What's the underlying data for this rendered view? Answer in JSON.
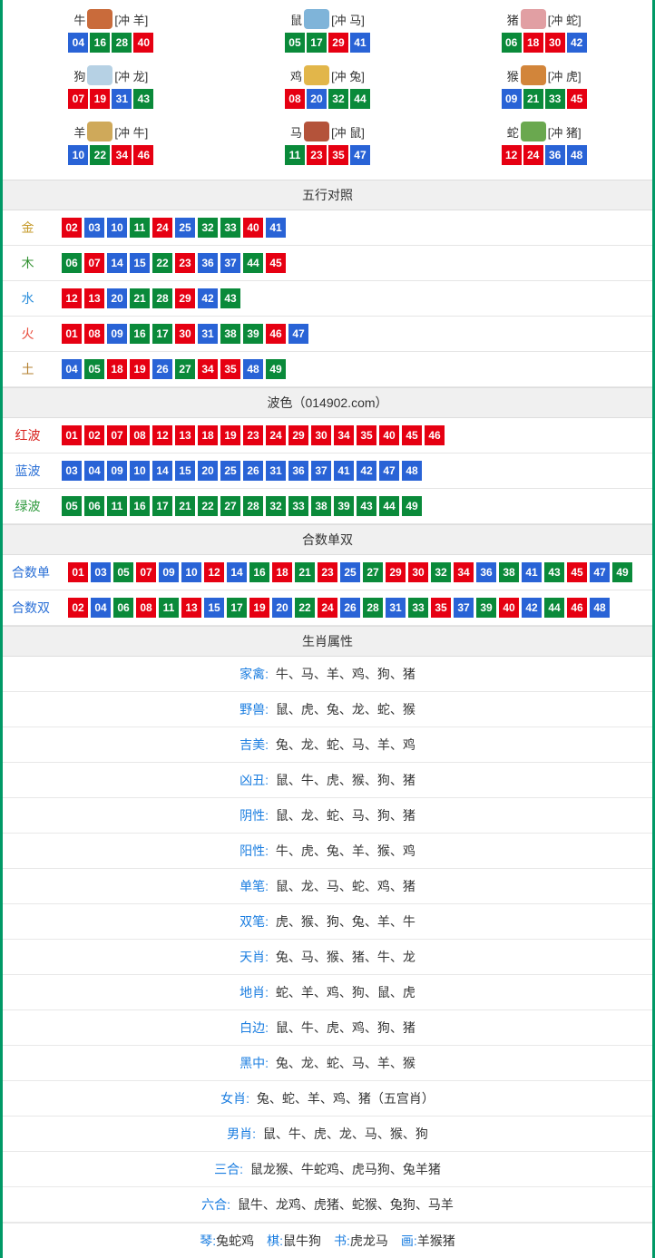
{
  "colors": {
    "red": "#e60012",
    "blue": "#2963d6",
    "green": "#0a8a3a",
    "gold": "#c59a2a",
    "wood": "#2f8f2f",
    "water": "#2a8edb",
    "fire": "#e84a3a",
    "earth": "#b37f2e",
    "redText": "#d8201c",
    "blueText": "#2a6fd6",
    "greenText": "#2e9a3c",
    "labelBlue": "#1a7de0",
    "icon0": "#c96b3b",
    "icon1": "#7fb4d9",
    "icon2": "#e19fa3",
    "icon3": "#b6d1e4",
    "icon4": "#e2b64a",
    "icon5": "#d2853a",
    "icon6": "#cfa95a",
    "icon7": "#b4533a",
    "icon8": "#6aa84f"
  },
  "zodiac": [
    {
      "name": "牛",
      "clash": "[冲 羊]",
      "iconColor": "icon0",
      "nums": [
        {
          "n": "04",
          "c": "blue"
        },
        {
          "n": "16",
          "c": "green"
        },
        {
          "n": "28",
          "c": "green"
        },
        {
          "n": "40",
          "c": "red"
        }
      ]
    },
    {
      "name": "鼠",
      "clash": "[冲 马]",
      "iconColor": "icon1",
      "nums": [
        {
          "n": "05",
          "c": "green"
        },
        {
          "n": "17",
          "c": "green"
        },
        {
          "n": "29",
          "c": "red"
        },
        {
          "n": "41",
          "c": "blue"
        }
      ]
    },
    {
      "name": "猪",
      "clash": "[冲 蛇]",
      "iconColor": "icon2",
      "nums": [
        {
          "n": "06",
          "c": "green"
        },
        {
          "n": "18",
          "c": "red"
        },
        {
          "n": "30",
          "c": "red"
        },
        {
          "n": "42",
          "c": "blue"
        }
      ]
    },
    {
      "name": "狗",
      "clash": "[冲 龙]",
      "iconColor": "icon3",
      "nums": [
        {
          "n": "07",
          "c": "red"
        },
        {
          "n": "19",
          "c": "red"
        },
        {
          "n": "31",
          "c": "blue"
        },
        {
          "n": "43",
          "c": "green"
        }
      ]
    },
    {
      "name": "鸡",
      "clash": "[冲 兔]",
      "iconColor": "icon4",
      "nums": [
        {
          "n": "08",
          "c": "red"
        },
        {
          "n": "20",
          "c": "blue"
        },
        {
          "n": "32",
          "c": "green"
        },
        {
          "n": "44",
          "c": "green"
        }
      ]
    },
    {
      "name": "猴",
      "clash": "[冲 虎]",
      "iconColor": "icon5",
      "nums": [
        {
          "n": "09",
          "c": "blue"
        },
        {
          "n": "21",
          "c": "green"
        },
        {
          "n": "33",
          "c": "green"
        },
        {
          "n": "45",
          "c": "red"
        }
      ]
    },
    {
      "name": "羊",
      "clash": "[冲 牛]",
      "iconColor": "icon6",
      "nums": [
        {
          "n": "10",
          "c": "blue"
        },
        {
          "n": "22",
          "c": "green"
        },
        {
          "n": "34",
          "c": "red"
        },
        {
          "n": "46",
          "c": "red"
        }
      ]
    },
    {
      "name": "马",
      "clash": "[冲 鼠]",
      "iconColor": "icon7",
      "nums": [
        {
          "n": "11",
          "c": "green"
        },
        {
          "n": "23",
          "c": "red"
        },
        {
          "n": "35",
          "c": "red"
        },
        {
          "n": "47",
          "c": "blue"
        }
      ]
    },
    {
      "name": "蛇",
      "clash": "[冲 猪]",
      "iconColor": "icon8",
      "nums": [
        {
          "n": "12",
          "c": "red"
        },
        {
          "n": "24",
          "c": "red"
        },
        {
          "n": "36",
          "c": "blue"
        },
        {
          "n": "48",
          "c": "blue"
        }
      ]
    }
  ],
  "sections": {
    "wuxing_title": "五行对照",
    "bose_title": "波色（014902.com）",
    "heshu_title": "合数单双",
    "shengxiao_title": "生肖属性"
  },
  "wuxing": [
    {
      "label": "金",
      "labelColor": "gold",
      "nums": [
        {
          "n": "02",
          "c": "red"
        },
        {
          "n": "03",
          "c": "blue"
        },
        {
          "n": "10",
          "c": "blue"
        },
        {
          "n": "11",
          "c": "green"
        },
        {
          "n": "24",
          "c": "red"
        },
        {
          "n": "25",
          "c": "blue"
        },
        {
          "n": "32",
          "c": "green"
        },
        {
          "n": "33",
          "c": "green"
        },
        {
          "n": "40",
          "c": "red"
        },
        {
          "n": "41",
          "c": "blue"
        }
      ]
    },
    {
      "label": "木",
      "labelColor": "wood",
      "nums": [
        {
          "n": "06",
          "c": "green"
        },
        {
          "n": "07",
          "c": "red"
        },
        {
          "n": "14",
          "c": "blue"
        },
        {
          "n": "15",
          "c": "blue"
        },
        {
          "n": "22",
          "c": "green"
        },
        {
          "n": "23",
          "c": "red"
        },
        {
          "n": "36",
          "c": "blue"
        },
        {
          "n": "37",
          "c": "blue"
        },
        {
          "n": "44",
          "c": "green"
        },
        {
          "n": "45",
          "c": "red"
        }
      ]
    },
    {
      "label": "水",
      "labelColor": "water",
      "nums": [
        {
          "n": "12",
          "c": "red"
        },
        {
          "n": "13",
          "c": "red"
        },
        {
          "n": "20",
          "c": "blue"
        },
        {
          "n": "21",
          "c": "green"
        },
        {
          "n": "28",
          "c": "green"
        },
        {
          "n": "29",
          "c": "red"
        },
        {
          "n": "42",
          "c": "blue"
        },
        {
          "n": "43",
          "c": "green"
        }
      ]
    },
    {
      "label": "火",
      "labelColor": "fire",
      "nums": [
        {
          "n": "01",
          "c": "red"
        },
        {
          "n": "08",
          "c": "red"
        },
        {
          "n": "09",
          "c": "blue"
        },
        {
          "n": "16",
          "c": "green"
        },
        {
          "n": "17",
          "c": "green"
        },
        {
          "n": "30",
          "c": "red"
        },
        {
          "n": "31",
          "c": "blue"
        },
        {
          "n": "38",
          "c": "green"
        },
        {
          "n": "39",
          "c": "green"
        },
        {
          "n": "46",
          "c": "red"
        },
        {
          "n": "47",
          "c": "blue"
        }
      ]
    },
    {
      "label": "土",
      "labelColor": "earth",
      "nums": [
        {
          "n": "04",
          "c": "blue"
        },
        {
          "n": "05",
          "c": "green"
        },
        {
          "n": "18",
          "c": "red"
        },
        {
          "n": "19",
          "c": "red"
        },
        {
          "n": "26",
          "c": "blue"
        },
        {
          "n": "27",
          "c": "green"
        },
        {
          "n": "34",
          "c": "red"
        },
        {
          "n": "35",
          "c": "red"
        },
        {
          "n": "48",
          "c": "blue"
        },
        {
          "n": "49",
          "c": "green"
        }
      ]
    }
  ],
  "bose": [
    {
      "label": "红波",
      "labelColor": "redText",
      "nums": [
        {
          "n": "01",
          "c": "red"
        },
        {
          "n": "02",
          "c": "red"
        },
        {
          "n": "07",
          "c": "red"
        },
        {
          "n": "08",
          "c": "red"
        },
        {
          "n": "12",
          "c": "red"
        },
        {
          "n": "13",
          "c": "red"
        },
        {
          "n": "18",
          "c": "red"
        },
        {
          "n": "19",
          "c": "red"
        },
        {
          "n": "23",
          "c": "red"
        },
        {
          "n": "24",
          "c": "red"
        },
        {
          "n": "29",
          "c": "red"
        },
        {
          "n": "30",
          "c": "red"
        },
        {
          "n": "34",
          "c": "red"
        },
        {
          "n": "35",
          "c": "red"
        },
        {
          "n": "40",
          "c": "red"
        },
        {
          "n": "45",
          "c": "red"
        },
        {
          "n": "46",
          "c": "red"
        }
      ]
    },
    {
      "label": "蓝波",
      "labelColor": "blueText",
      "nums": [
        {
          "n": "03",
          "c": "blue"
        },
        {
          "n": "04",
          "c": "blue"
        },
        {
          "n": "09",
          "c": "blue"
        },
        {
          "n": "10",
          "c": "blue"
        },
        {
          "n": "14",
          "c": "blue"
        },
        {
          "n": "15",
          "c": "blue"
        },
        {
          "n": "20",
          "c": "blue"
        },
        {
          "n": "25",
          "c": "blue"
        },
        {
          "n": "26",
          "c": "blue"
        },
        {
          "n": "31",
          "c": "blue"
        },
        {
          "n": "36",
          "c": "blue"
        },
        {
          "n": "37",
          "c": "blue"
        },
        {
          "n": "41",
          "c": "blue"
        },
        {
          "n": "42",
          "c": "blue"
        },
        {
          "n": "47",
          "c": "blue"
        },
        {
          "n": "48",
          "c": "blue"
        }
      ]
    },
    {
      "label": "绿波",
      "labelColor": "greenText",
      "nums": [
        {
          "n": "05",
          "c": "green"
        },
        {
          "n": "06",
          "c": "green"
        },
        {
          "n": "11",
          "c": "green"
        },
        {
          "n": "16",
          "c": "green"
        },
        {
          "n": "17",
          "c": "green"
        },
        {
          "n": "21",
          "c": "green"
        },
        {
          "n": "22",
          "c": "green"
        },
        {
          "n": "27",
          "c": "green"
        },
        {
          "n": "28",
          "c": "green"
        },
        {
          "n": "32",
          "c": "green"
        },
        {
          "n": "33",
          "c": "green"
        },
        {
          "n": "38",
          "c": "green"
        },
        {
          "n": "39",
          "c": "green"
        },
        {
          "n": "43",
          "c": "green"
        },
        {
          "n": "44",
          "c": "green"
        },
        {
          "n": "49",
          "c": "green"
        }
      ]
    }
  ],
  "heshu": [
    {
      "label": "合数单",
      "labelColor": "blueText",
      "nums": [
        {
          "n": "01",
          "c": "red"
        },
        {
          "n": "03",
          "c": "blue"
        },
        {
          "n": "05",
          "c": "green"
        },
        {
          "n": "07",
          "c": "red"
        },
        {
          "n": "09",
          "c": "blue"
        },
        {
          "n": "10",
          "c": "blue"
        },
        {
          "n": "12",
          "c": "red"
        },
        {
          "n": "14",
          "c": "blue"
        },
        {
          "n": "16",
          "c": "green"
        },
        {
          "n": "18",
          "c": "red"
        },
        {
          "n": "21",
          "c": "green"
        },
        {
          "n": "23",
          "c": "red"
        },
        {
          "n": "25",
          "c": "blue"
        },
        {
          "n": "27",
          "c": "green"
        },
        {
          "n": "29",
          "c": "red"
        },
        {
          "n": "30",
          "c": "red"
        },
        {
          "n": "32",
          "c": "green"
        },
        {
          "n": "34",
          "c": "red"
        },
        {
          "n": "36",
          "c": "blue"
        },
        {
          "n": "38",
          "c": "green"
        },
        {
          "n": "41",
          "c": "blue"
        },
        {
          "n": "43",
          "c": "green"
        },
        {
          "n": "45",
          "c": "red"
        },
        {
          "n": "47",
          "c": "blue"
        },
        {
          "n": "49",
          "c": "green"
        }
      ]
    },
    {
      "label": "合数双",
      "labelColor": "blueText",
      "nums": [
        {
          "n": "02",
          "c": "red"
        },
        {
          "n": "04",
          "c": "blue"
        },
        {
          "n": "06",
          "c": "green"
        },
        {
          "n": "08",
          "c": "red"
        },
        {
          "n": "11",
          "c": "green"
        },
        {
          "n": "13",
          "c": "red"
        },
        {
          "n": "15",
          "c": "blue"
        },
        {
          "n": "17",
          "c": "green"
        },
        {
          "n": "19",
          "c": "red"
        },
        {
          "n": "20",
          "c": "blue"
        },
        {
          "n": "22",
          "c": "green"
        },
        {
          "n": "24",
          "c": "red"
        },
        {
          "n": "26",
          "c": "blue"
        },
        {
          "n": "28",
          "c": "green"
        },
        {
          "n": "31",
          "c": "blue"
        },
        {
          "n": "33",
          "c": "green"
        },
        {
          "n": "35",
          "c": "red"
        },
        {
          "n": "37",
          "c": "blue"
        },
        {
          "n": "39",
          "c": "green"
        },
        {
          "n": "40",
          "c": "red"
        },
        {
          "n": "42",
          "c": "blue"
        },
        {
          "n": "44",
          "c": "green"
        },
        {
          "n": "46",
          "c": "red"
        },
        {
          "n": "48",
          "c": "blue"
        }
      ]
    }
  ],
  "attrs": [
    {
      "label": "家禽:",
      "value": "牛、马、羊、鸡、狗、猪"
    },
    {
      "label": "野兽:",
      "value": "鼠、虎、兔、龙、蛇、猴"
    },
    {
      "label": "吉美:",
      "value": "兔、龙、蛇、马、羊、鸡"
    },
    {
      "label": "凶丑:",
      "value": "鼠、牛、虎、猴、狗、猪"
    },
    {
      "label": "阴性:",
      "value": "鼠、龙、蛇、马、狗、猪"
    },
    {
      "label": "阳性:",
      "value": "牛、虎、兔、羊、猴、鸡"
    },
    {
      "label": "单笔:",
      "value": "鼠、龙、马、蛇、鸡、猪"
    },
    {
      "label": "双笔:",
      "value": "虎、猴、狗、兔、羊、牛"
    },
    {
      "label": "天肖:",
      "value": "兔、马、猴、猪、牛、龙"
    },
    {
      "label": "地肖:",
      "value": "蛇、羊、鸡、狗、鼠、虎"
    },
    {
      "label": "白边:",
      "value": "鼠、牛、虎、鸡、狗、猪"
    },
    {
      "label": "黑中:",
      "value": "兔、龙、蛇、马、羊、猴"
    },
    {
      "label": "女肖:",
      "value": "兔、蛇、羊、鸡、猪（五宫肖）"
    },
    {
      "label": "男肖:",
      "value": "鼠、牛、虎、龙、马、猴、狗"
    },
    {
      "label": "三合:",
      "value": "鼠龙猴、牛蛇鸡、虎马狗、兔羊猪"
    },
    {
      "label": "六合:",
      "value": "鼠牛、龙鸡、虎猪、蛇猴、兔狗、马羊"
    }
  ],
  "bottom": [
    {
      "label": "琴:",
      "value": "兔蛇鸡"
    },
    {
      "label": "棋:",
      "value": "鼠牛狗"
    },
    {
      "label": "书:",
      "value": "虎龙马"
    },
    {
      "label": "画:",
      "value": "羊猴猪"
    }
  ]
}
